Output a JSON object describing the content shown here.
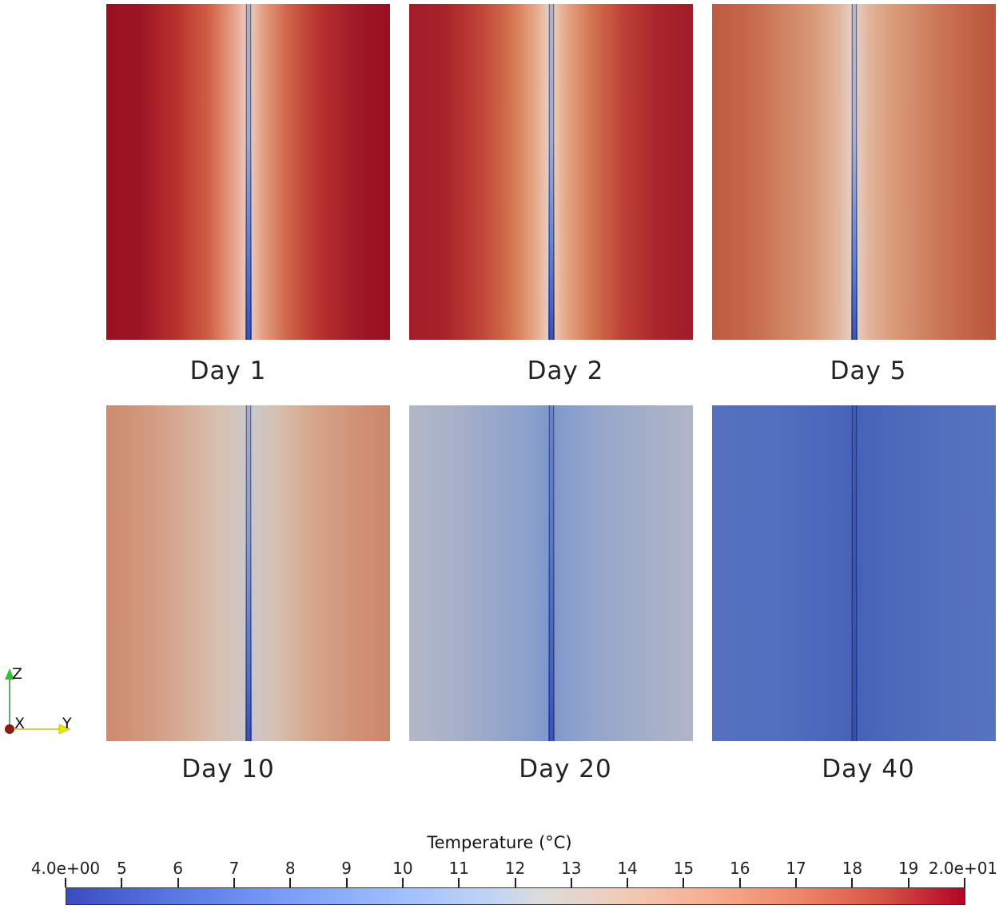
{
  "panels": [
    {
      "label": "Day 1",
      "bg": "#960f20",
      "left_grad": "linear-gradient(to right,#990f22 0%,#9e1725 25%,#b8322e 50%,#d06045 72%,#e69a80 88%,#ecd0c6 100%)",
      "right_grad": "linear-gradient(to right,#ecd0c6 0%,#e4a084 10%,#cf6347 28%,#b8322e 50%,#a01a27 75%,#990f22 100%)",
      "crack_grad": "linear-gradient(to bottom,#b4b0bc 0%,#a4a8c8 40%,#5f79c6 75%,#3a52b2 100%)"
    },
    {
      "label": "Day 2",
      "bg": "#9e1a26",
      "left_grad": "linear-gradient(to right,#a01d28 0%,#a8222a 25%,#bf4438 50%,#d4734f 72%,#e6a686 88%,#ebd3c6 100%)",
      "right_grad": "linear-gradient(to right,#ebd3c6 0%,#e4a888 10%,#d37550 28%,#be4236 50%,#aa252b 75%,#9e1d28 100%)",
      "crack_grad": "linear-gradient(to bottom,#b6b3c0 0%,#a6abca 40%,#6280c8 75%,#3a52b2 100%)"
    },
    {
      "label": "Day 5",
      "bg": "#c05a40",
      "left_grad": "linear-gradient(to right,#bf5a41 0%,#c5674a 25%,#cf8261 50%,#d99a78 72%,#e2b49c 88%,#e6d2c8 100%)",
      "right_grad": "linear-gradient(to right,#e6d2c8 0%,#e2b49c 10%,#d99a78 28%,#cf8261 50%,#c5674a 75%,#bb553c 100%)",
      "crack_grad": "linear-gradient(to bottom,#b8b6c2 0%,#a9aecb 40%,#6682c8 75%,#3c55b4 100%)"
    },
    {
      "label": "Day 10",
      "bg": "#cf8c6f",
      "left_grad": "linear-gradient(to right,#cd8a6e 0%,#d29a80 30%,#d7ad96 55%,#d8c0b2 80%,#c9c8cc 100%)",
      "right_grad": "linear-gradient(to right,#c9c8cc 0%,#d8bfb0 20%,#d6a68c 45%,#d1957a 70%,#cb866a 100%)",
      "crack_grad": "linear-gradient(to bottom,#a8abc4 0%,#8e9bc8 40%,#5a77c4 75%,#3a52b2 100%)"
    },
    {
      "label": "Day 20",
      "bg": "#a9b2c6",
      "left_grad": "linear-gradient(to right,#b2b8c6 0%,#a8b1c8 30%,#98a8ca 60%,#8aa0cc 85%,#7d95cc 100%)",
      "right_grad": "linear-gradient(to right,#7d95cc 0%,#8aa0cc 15%,#98a8ca 40%,#a5afc8 70%,#b0b6c6 100%)",
      "crack_grad": "linear-gradient(to bottom,#6a84c8 0%,#5a78c4 40%,#4865bc 75%,#3a55b4 100%)"
    },
    {
      "label": "Day 40",
      "bg": "#4f6cbd",
      "left_grad": "linear-gradient(to right,#5470bf 0%,#5270bf 40%,#4c69bb 75%,#4662b6 100%)",
      "right_grad": "linear-gradient(to right,#4662b6 0%,#4b68ba 25%,#526ebe 60%,#5673c0 100%)",
      "crack_grad": "linear-gradient(to bottom,#3f5ab2 0%,#3a55ae 50%,#3551aa 100%)"
    }
  ],
  "axes": {
    "z": "Z",
    "x": "X",
    "y": "Y"
  },
  "colorbar": {
    "title": "Temperature (°C)",
    "ticks": [
      "4.0e+00",
      "5",
      "6",
      "7",
      "8",
      "9",
      "10",
      "11",
      "12",
      "13",
      "14",
      "15",
      "16",
      "17",
      "18",
      "19",
      "2.0e+01"
    ],
    "gradient": "linear-gradient(to right,#3b4cc0 0%,#5977e3 12%,#7b9ff9 25%,#9ebeff 37%,#c0d4f5 47%,#dddcdc 53%,#f2cbb7 62%,#f7ac8e 72%,#ee8468 82%,#d65244 91%,#b40426 100%)"
  }
}
